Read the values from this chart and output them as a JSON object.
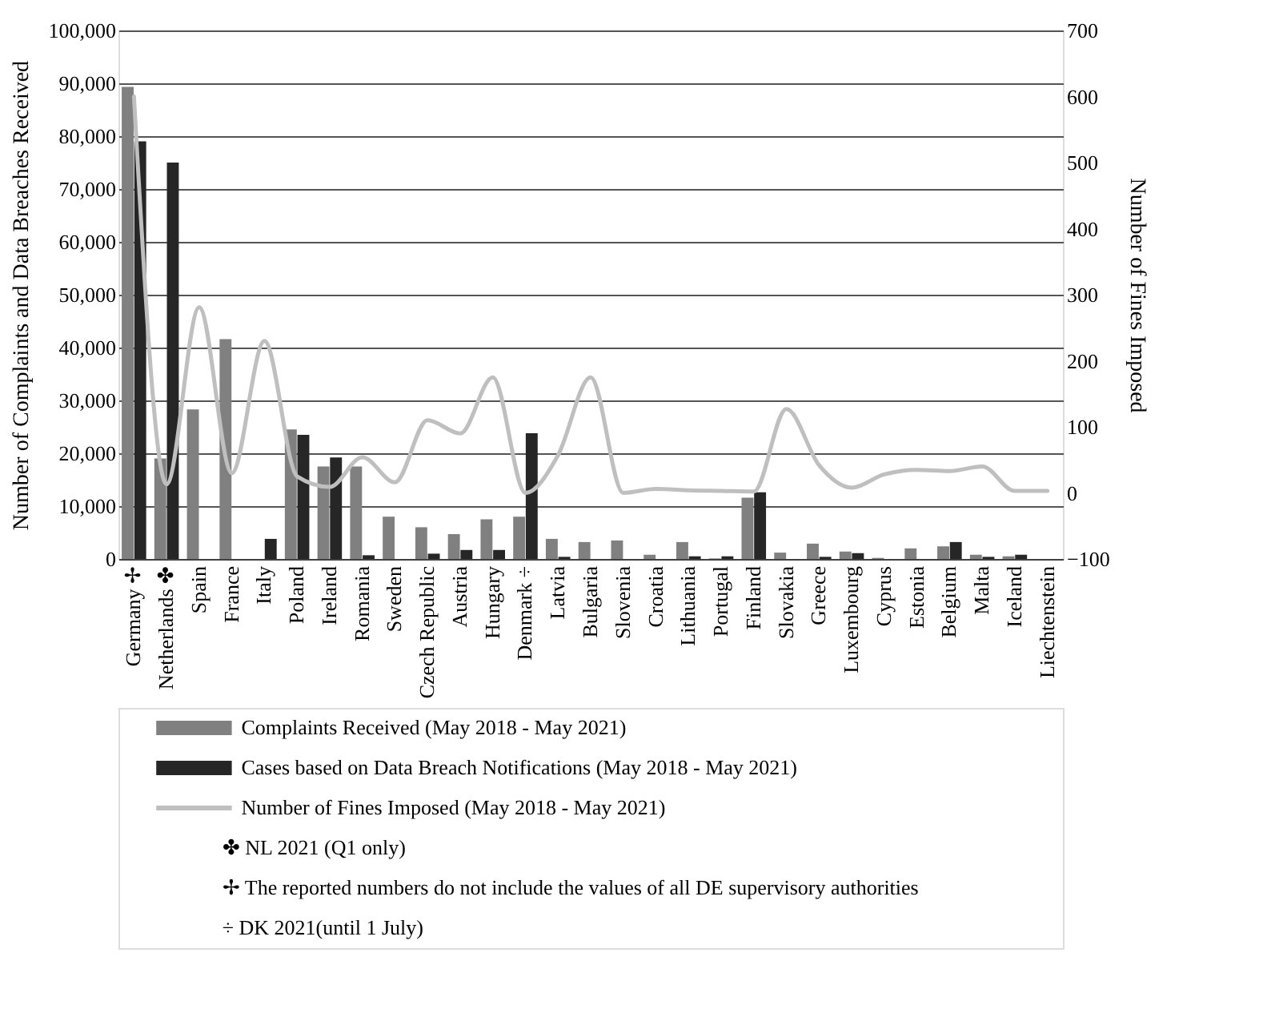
{
  "chart_data": {
    "type": "bar",
    "categories": [
      "Germany ✢",
      "Netherlands ✤",
      "Spain",
      "France",
      "Italy",
      "Poland",
      "Ireland",
      "Romania",
      "Sweden",
      "Czech Republic",
      "Austria",
      "Hungary",
      "Denmark ÷",
      "Latvia",
      "Bulgaria",
      "Slovenia",
      "Croatia",
      "Lithuania",
      "Portugal",
      "Finland",
      "Slovakia",
      "Greece",
      "Luxembourg",
      "Cyprus",
      "Estonia",
      "Belgium",
      "Malta",
      "Iceland",
      "Liechtenstein"
    ],
    "series": [
      {
        "name": "Complaints Received (May 2018 - May 2021)",
        "type": "bar",
        "color": "#808080",
        "values": [
          89300,
          19000,
          28300,
          41600,
          0,
          24500,
          17500,
          17500,
          8000,
          6000,
          4700,
          7500,
          8000,
          3800,
          3200,
          3500,
          800,
          3200,
          100,
          11600,
          1200,
          2900,
          1400,
          200,
          2000,
          2400,
          800,
          500,
          0
        ]
      },
      {
        "name": "Cases based on Data Breach Notifications (May 2018 - May 2021)",
        "type": "bar",
        "color": "#262626",
        "values": [
          79000,
          75000,
          null,
          null,
          3800,
          23500,
          19200,
          700,
          null,
          1000,
          1700,
          1700,
          23800,
          400,
          0,
          0,
          0,
          500,
          500,
          12600,
          0,
          400,
          1100,
          null,
          0,
          3200,
          400,
          800,
          0
        ]
      },
      {
        "name": "Number of Fines Imposed (May 2018 - May 2021)",
        "type": "line",
        "axis": "y2",
        "color": "#bfbfbf",
        "values": [
          600,
          13,
          281,
          30,
          230,
          25,
          9,
          54,
          16,
          110,
          90,
          175,
          0,
          57,
          175,
          0,
          6,
          4,
          3,
          2,
          127,
          42,
          8,
          28,
          35,
          33,
          40,
          3,
          3
        ]
      }
    ],
    "ylabel": "Number of Complaints and Data Breaches Received",
    "y2label": "Number of Fines Imposed",
    "ylim": [
      0,
      100000
    ],
    "yticks": [
      0,
      {
        "value": 10000,
        "label": "10,000"
      },
      {
        "value": 20000,
        "label": "20,000"
      },
      {
        "value": 30000,
        "label": "30,000"
      },
      {
        "value": 40000,
        "label": "40,000"
      },
      {
        "value": 50000,
        "label": "50,000"
      },
      {
        "value": 60000,
        "label": "60,000"
      },
      {
        "value": 70000,
        "label": "70,000"
      },
      {
        "value": 80000,
        "label": "80,000"
      },
      {
        "value": 90000,
        "label": "90,000"
      },
      {
        "value": 100000,
        "label": "100,000"
      }
    ],
    "y2lim": [
      -100,
      700
    ],
    "y2ticks": [
      -100,
      0,
      100,
      200,
      300,
      400,
      500,
      600,
      700
    ],
    "grid": "y",
    "legend": "bottom",
    "annotations": [
      "✤ NL 2021 (Q1 only)",
      "✢ The reported numbers do not include the values of all DE supervisory authorities",
      "÷ DK 2021(until 1 July)"
    ]
  }
}
